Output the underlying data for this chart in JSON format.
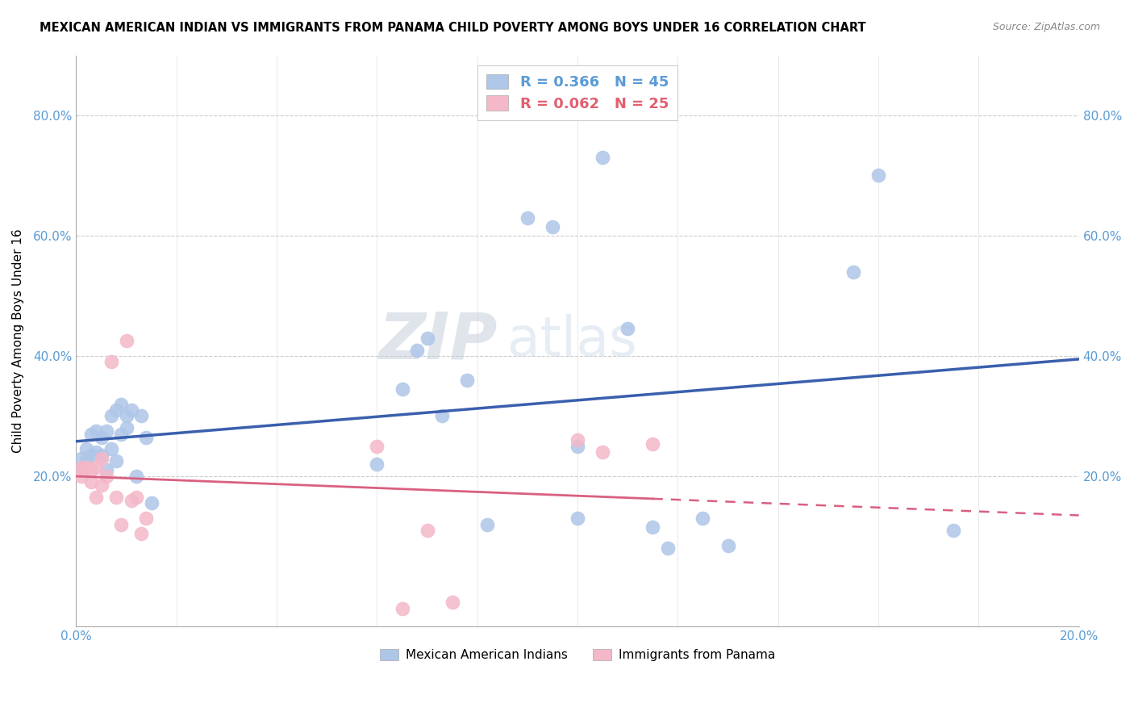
{
  "title": "MEXICAN AMERICAN INDIAN VS IMMIGRANTS FROM PANAMA CHILD POVERTY AMONG BOYS UNDER 16 CORRELATION CHART",
  "source": "Source: ZipAtlas.com",
  "ylabel": "Child Poverty Among Boys Under 16",
  "xlim": [
    0.0,
    0.2
  ],
  "ylim": [
    -0.05,
    0.9
  ],
  "xtick_positions": [
    0.0,
    0.02,
    0.04,
    0.06,
    0.08,
    0.1,
    0.12,
    0.14,
    0.16,
    0.18,
    0.2
  ],
  "xtick_labels": [
    "0.0%",
    "",
    "",
    "",
    "",
    "",
    "",
    "",
    "",
    "",
    "20.0%"
  ],
  "ytick_positions": [
    0.2,
    0.4,
    0.6,
    0.8
  ],
  "ytick_labels": [
    "20.0%",
    "40.0%",
    "60.0%",
    "80.0%"
  ],
  "blue_R": 0.366,
  "blue_N": 45,
  "pink_R": 0.062,
  "pink_N": 25,
  "blue_color": "#aec6e8",
  "pink_color": "#f4b8c8",
  "blue_line_color": "#3a5fad",
  "pink_line_color": "#d96080",
  "pink_dash_color": "#d96080",
  "watermark_zip": "ZIP",
  "watermark_atlas": "atlas",
  "legend_label_blue": "Mexican American Indians",
  "legend_label_pink": "Immigrants from Panama",
  "blue_x": [
    0.001,
    0.001,
    0.002,
    0.002,
    0.003,
    0.003,
    0.004,
    0.004,
    0.005,
    0.005,
    0.006,
    0.006,
    0.007,
    0.007,
    0.008,
    0.008,
    0.009,
    0.009,
    0.01,
    0.01,
    0.011,
    0.012,
    0.013,
    0.014,
    0.015,
    0.06,
    0.065,
    0.068,
    0.07,
    0.073,
    0.078,
    0.082,
    0.09,
    0.095,
    0.1,
    0.1,
    0.105,
    0.11,
    0.115,
    0.118,
    0.125,
    0.13,
    0.155,
    0.16,
    0.175
  ],
  "blue_y": [
    0.23,
    0.215,
    0.225,
    0.245,
    0.235,
    0.27,
    0.24,
    0.275,
    0.235,
    0.265,
    0.21,
    0.275,
    0.245,
    0.3,
    0.225,
    0.31,
    0.27,
    0.32,
    0.3,
    0.28,
    0.31,
    0.2,
    0.3,
    0.265,
    0.155,
    0.22,
    0.345,
    0.41,
    0.43,
    0.3,
    0.36,
    0.12,
    0.63,
    0.615,
    0.13,
    0.25,
    0.73,
    0.445,
    0.115,
    0.08,
    0.13,
    0.085,
    0.54,
    0.7,
    0.11
  ],
  "pink_x": [
    0.001,
    0.001,
    0.002,
    0.003,
    0.003,
    0.004,
    0.004,
    0.005,
    0.005,
    0.006,
    0.007,
    0.008,
    0.009,
    0.01,
    0.011,
    0.012,
    0.013,
    0.014,
    0.06,
    0.065,
    0.07,
    0.075,
    0.1,
    0.105,
    0.115
  ],
  "pink_y": [
    0.2,
    0.215,
    0.215,
    0.19,
    0.21,
    0.215,
    0.165,
    0.185,
    0.23,
    0.2,
    0.39,
    0.165,
    0.12,
    0.425,
    0.16,
    0.165,
    0.105,
    0.13,
    0.25,
    -0.02,
    0.11,
    -0.01,
    0.26,
    0.24,
    0.253
  ]
}
